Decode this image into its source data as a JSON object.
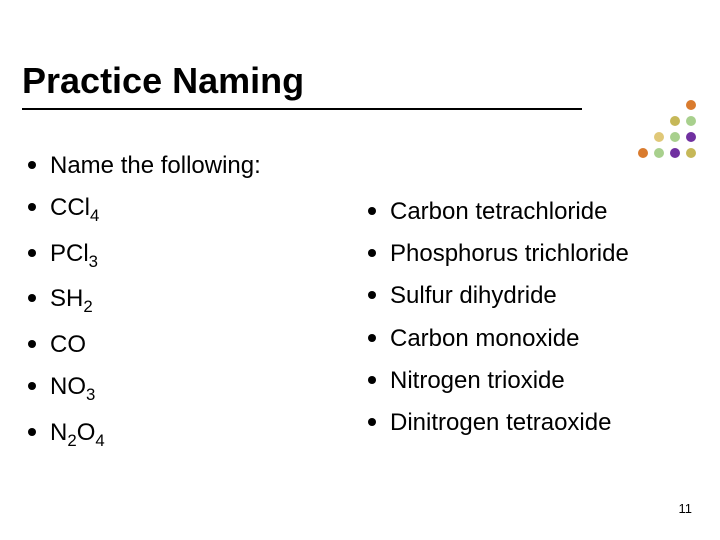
{
  "title": "Practice Naming",
  "page_number": "11",
  "colors": {
    "text": "#000000",
    "bg": "#ffffff",
    "underline": "#000000",
    "bullet": "#000000",
    "decor": [
      "#d97b2e",
      "#c6b858",
      "#a8d08d",
      "#7030a0",
      "#e0c878"
    ]
  },
  "left_items": [
    {
      "label": "Name  the following:",
      "sub": []
    },
    {
      "label": "CCl",
      "sub": [
        "4"
      ]
    },
    {
      "label": "PCl",
      "sub": [
        "3"
      ]
    },
    {
      "label": "SH",
      "sub": [
        "2"
      ]
    },
    {
      "label": "CO",
      "sub": []
    },
    {
      "label": "NO",
      "sub": [
        "3"
      ]
    },
    {
      "label": "N",
      "sub": [
        "2",
        "O",
        "4"
      ],
      "pattern": "N|2|O|4"
    }
  ],
  "right_items": [
    {
      "label": "Carbon tetrachloride"
    },
    {
      "label": "Phosphorus trichloride"
    },
    {
      "label": "Sulfur dihydride"
    },
    {
      "label": "Carbon monoxide"
    },
    {
      "label": "Nitrogen trioxide"
    },
    {
      "label": "Dinitrogen tetraoxide"
    }
  ],
  "decoration_grid": [
    [
      "",
      "",
      "",
      "",
      "#d97b2e"
    ],
    [
      "",
      "",
      "",
      "#c6b858",
      "#a8d08d"
    ],
    [
      "",
      "",
      "#e0c878",
      "#a8d08d",
      "#7030a0"
    ],
    [
      "",
      "#d97b2e",
      "#a8d08d",
      "#7030a0",
      "#c6b858"
    ]
  ]
}
